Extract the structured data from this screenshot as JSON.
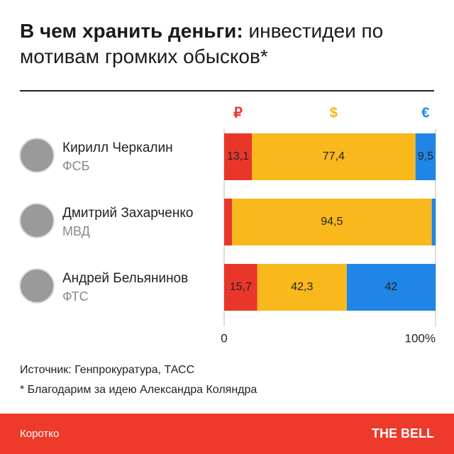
{
  "chart_data": {
    "type": "stacked-bar-horizontal",
    "title": "В чем хранить деньги:",
    "subtitle": "инвестидеи по мотивам громких обысков*",
    "categories": [
      "Кирилл Черкалин",
      "Дмитрий Захарченко",
      "Андрей Бельянинов"
    ],
    "category_subtitles": [
      "ФСБ",
      "МВД",
      "ФТС"
    ],
    "series": [
      {
        "name": "₽",
        "color": "#e8372a",
        "values": [
          13.1,
          3.7,
          15.7
        ],
        "value_labels": [
          "13,1",
          null,
          "15,7"
        ]
      },
      {
        "name": "$",
        "color": "#f9b81b",
        "values": [
          77.4,
          94.5,
          42.3
        ],
        "value_labels": [
          "77,4",
          "94,5",
          "42,3"
        ]
      },
      {
        "name": "€",
        "color": "#1f86e6",
        "values": [
          9.5,
          1.8,
          42
        ],
        "value_labels": [
          "9,5",
          null,
          "42"
        ]
      }
    ],
    "xlim": [
      0,
      100
    ],
    "xticks": [
      0,
      {
        "value": 100,
        "label": "100%"
      }
    ],
    "source": "Источник: Генпрокуратура, ТАСС",
    "note": "* Благодарим за идею Александра Коляндра",
    "footer": "Коротко",
    "brand": "THE BELL"
  }
}
